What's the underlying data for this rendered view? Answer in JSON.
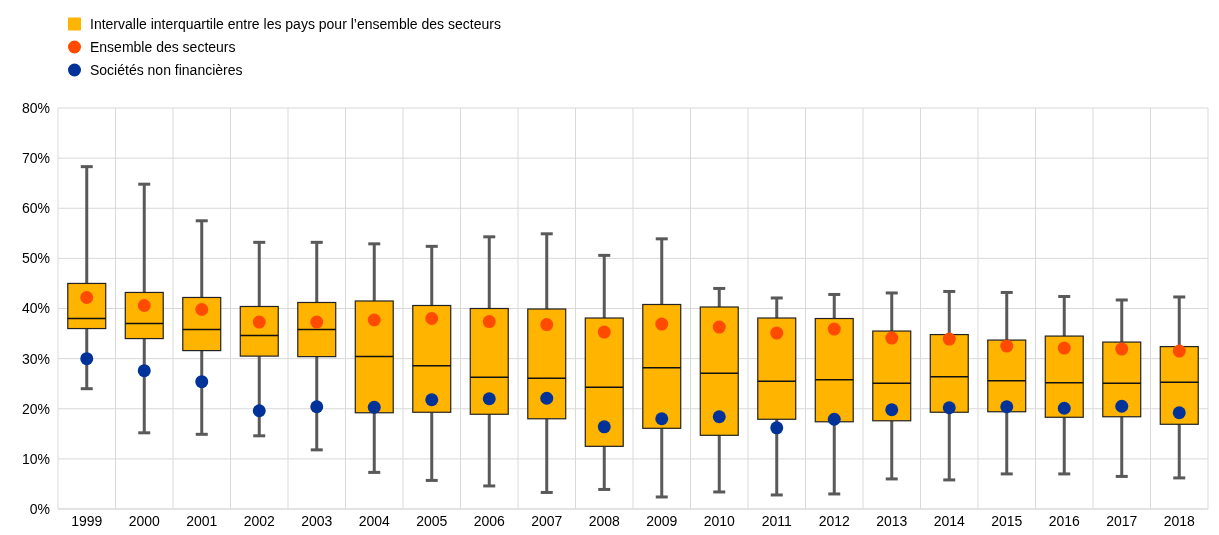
{
  "chart_data": {
    "type": "box",
    "categories": [
      "1999",
      "2000",
      "2001",
      "2002",
      "2003",
      "2004",
      "2005",
      "2006",
      "2007",
      "2008",
      "2009",
      "2010",
      "2011",
      "2012",
      "2013",
      "2014",
      "2015",
      "2016",
      "2017",
      "2018"
    ],
    "ylim": [
      0,
      80
    ],
    "yticks": [
      {
        "value": 0,
        "label": "0%"
      },
      {
        "value": 10,
        "label": "10%"
      },
      {
        "value": 20,
        "label": "20%"
      },
      {
        "value": 30,
        "label": "30%"
      },
      {
        "value": 40,
        "label": "40%"
      },
      {
        "value": 50,
        "label": "50%"
      },
      {
        "value": 60,
        "label": "60%"
      },
      {
        "value": 70,
        "label": "70%"
      },
      {
        "value": 80,
        "label": "80%"
      }
    ],
    "grid": true,
    "legend": "top left",
    "marker": "circle",
    "series": [
      {
        "name": "Intervalle interquartile entre les pays pour l’ensemble des secteurs",
        "color": "#ffb400",
        "boxes": [
          {
            "low": 24,
            "q1": 36,
            "median": 38,
            "q3": 45,
            "high": 68.3
          },
          {
            "low": 15.2,
            "q1": 34,
            "median": 37,
            "q3": 43.2,
            "high": 64.8
          },
          {
            "low": 14.9,
            "q1": 31.6,
            "median": 35.8,
            "q3": 42.2,
            "high": 57.5
          },
          {
            "low": 14.6,
            "q1": 30.5,
            "median": 34.6,
            "q3": 40.4,
            "high": 53.2
          },
          {
            "low": 11.8,
            "q1": 30.4,
            "median": 35.8,
            "q3": 41.2,
            "high": 53.2
          },
          {
            "low": 7.3,
            "q1": 19.2,
            "median": 30.4,
            "q3": 41.5,
            "high": 52.9
          },
          {
            "low": 5.7,
            "q1": 19.3,
            "median": 28.6,
            "q3": 40.6,
            "high": 52.4
          },
          {
            "low": 4.6,
            "q1": 18.9,
            "median": 26.3,
            "q3": 40,
            "high": 54.3
          },
          {
            "low": 3.3,
            "q1": 18,
            "median": 26.1,
            "q3": 39.9,
            "high": 54.9
          },
          {
            "low": 3.9,
            "q1": 12.5,
            "median": 24.3,
            "q3": 38.1,
            "high": 50.6
          },
          {
            "low": 2.4,
            "q1": 16.1,
            "median": 28.2,
            "q3": 40.8,
            "high": 53.9
          },
          {
            "low": 3.4,
            "q1": 14.7,
            "median": 27.1,
            "q3": 40.3,
            "high": 44
          },
          {
            "low": 2.8,
            "q1": 17.9,
            "median": 25.5,
            "q3": 38.1,
            "high": 42.1
          },
          {
            "low": 3,
            "q1": 17.4,
            "median": 25.8,
            "q3": 38,
            "high": 42.8
          },
          {
            "low": 6,
            "q1": 17.6,
            "median": 25.1,
            "q3": 35.5,
            "high": 43.1
          },
          {
            "low": 5.8,
            "q1": 19.3,
            "median": 26.4,
            "q3": 34.8,
            "high": 43.4
          },
          {
            "low": 7,
            "q1": 19.4,
            "median": 25.6,
            "q3": 33.7,
            "high": 43.2
          },
          {
            "low": 7,
            "q1": 18.3,
            "median": 25.2,
            "q3": 34.5,
            "high": 42.4
          },
          {
            "low": 6.5,
            "q1": 18.4,
            "median": 25.1,
            "q3": 33.3,
            "high": 41.7
          },
          {
            "low": 6.2,
            "q1": 16.9,
            "median": 25.3,
            "q3": 32.4,
            "high": 42.3
          }
        ]
      },
      {
        "name": "Ensemble des secteurs",
        "type": "scatter",
        "color": "#ff4b00",
        "values": [
          42.2,
          40.6,
          39.8,
          37.3,
          37.3,
          37.7,
          38,
          37.4,
          36.8,
          35.3,
          36.9,
          36.3,
          35.1,
          35.9,
          34.1,
          33.9,
          32.5,
          32.1,
          31.9,
          31.5
        ]
      },
      {
        "name": "Sociétés non financières",
        "type": "scatter",
        "color": "#003299",
        "values": [
          30,
          27.6,
          25.4,
          19.6,
          20.4,
          20.3,
          21.8,
          22,
          22.1,
          16.4,
          18,
          18.4,
          16.2,
          17.9,
          19.8,
          20.2,
          20.4,
          20.1,
          20.5,
          19.2
        ]
      }
    ]
  }
}
